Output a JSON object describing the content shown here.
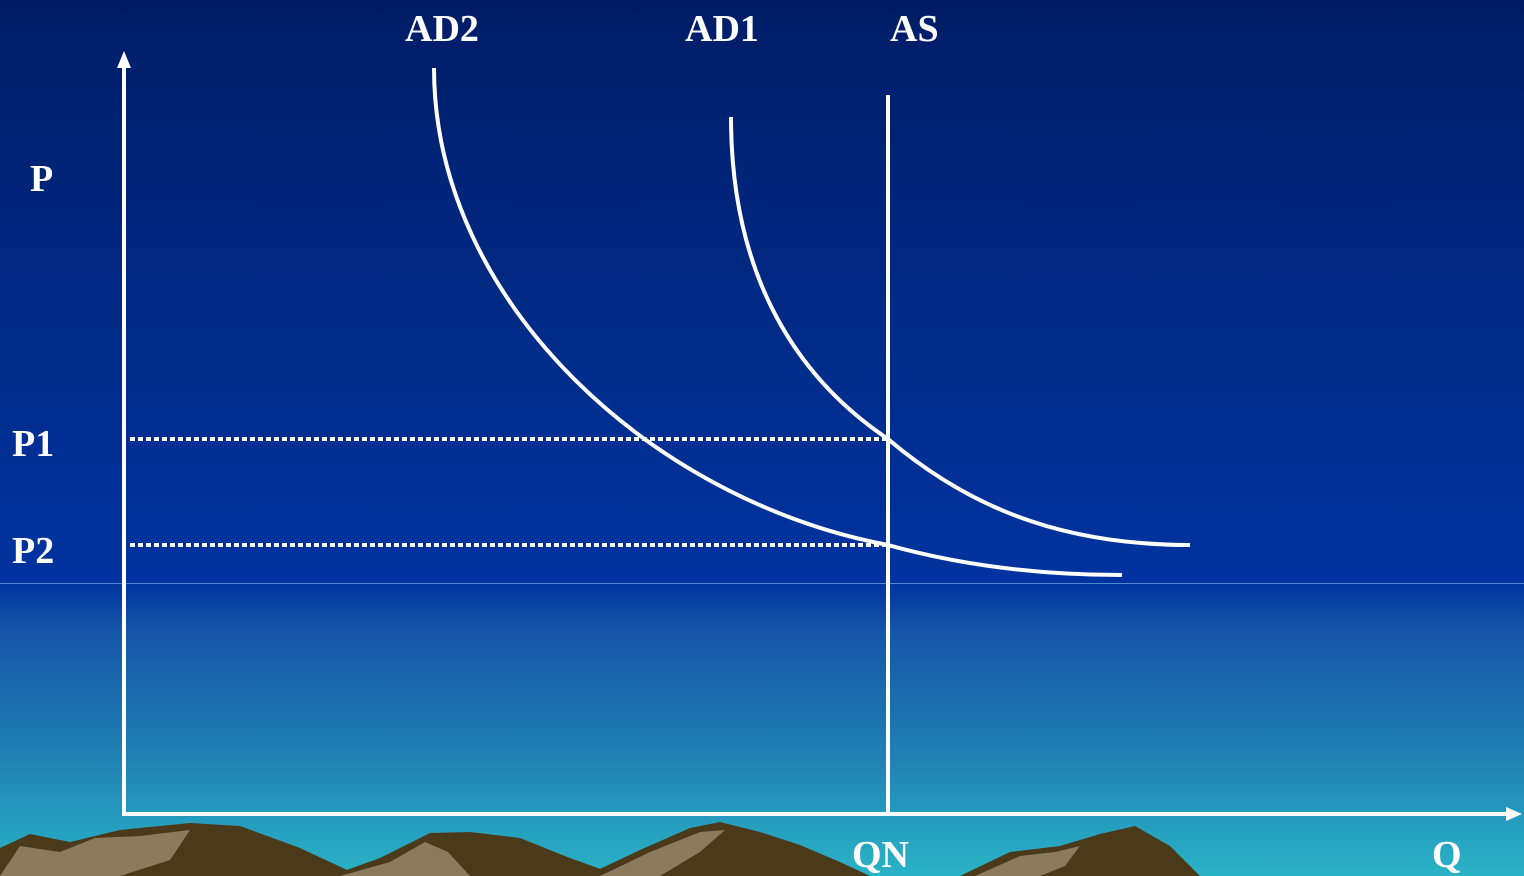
{
  "diagram": {
    "y_axis_label": "P",
    "x_axis_label": "Q",
    "curves": {
      "ad2": "AD2",
      "ad1": "AD1",
      "as": "AS"
    },
    "price_levels": {
      "p1": "P1",
      "p2": "P2"
    },
    "quantity_marker": "QN"
  },
  "colors": {
    "sky_top": "#001c66",
    "sky_bottom": "#2ab3c6",
    "lines": "#ffffff",
    "mountain_dark": "#4a3a1a",
    "mountain_light": "#8a7a5e"
  }
}
